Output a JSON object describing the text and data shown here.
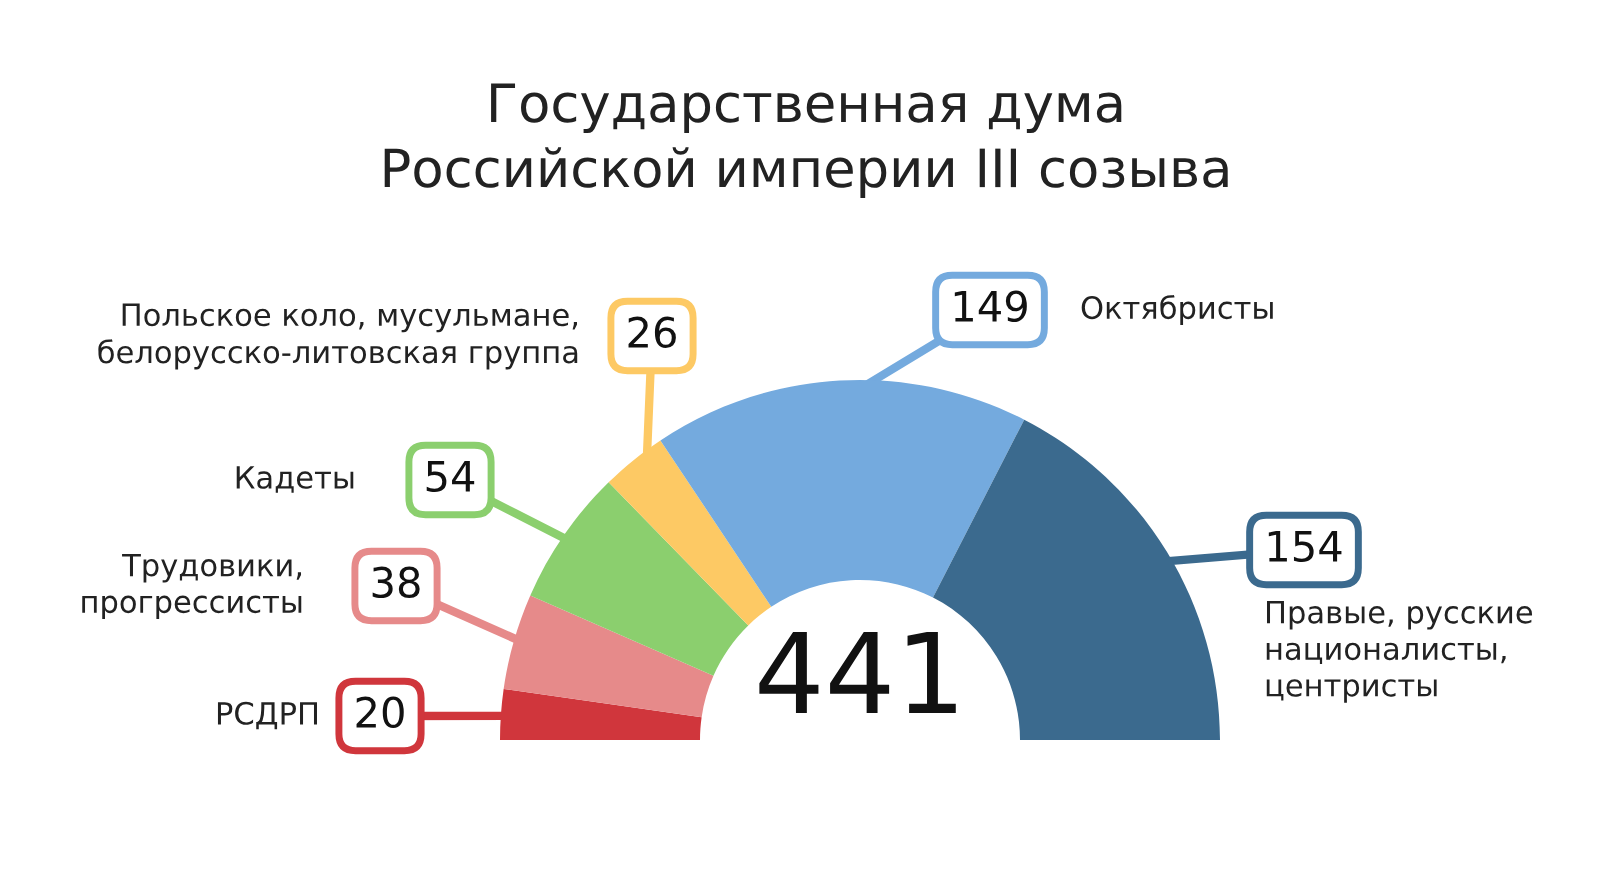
{
  "chart_data": {
    "type": "donut",
    "title": "Государственная дума\nРоссийской империи III созыва",
    "categories": [
      "РСДРП",
      "Трудовики,\nпрогрессисты",
      "Кадеты",
      "Польское коло, мусульмане,\nбелорусско-литовская группа",
      "Октябристы",
      "Правые, русские\nнационалисты,\nцентристы"
    ],
    "values": [
      20,
      38,
      54,
      26,
      149,
      154
    ],
    "colors": [
      "#d0363c",
      "#e68a8a",
      "#8bcf6e",
      "#fdc964",
      "#74aade",
      "#3b6a8e"
    ],
    "data_labels": true,
    "legend": "left",
    "annotations": [
      "441"
    ]
  }
}
